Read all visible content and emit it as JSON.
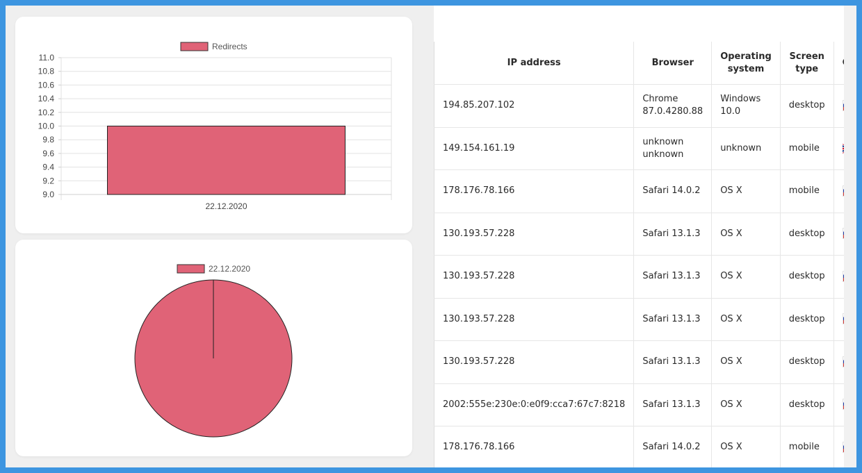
{
  "bar_chart": {
    "legend_label": "Redirects",
    "series_color": "#e06377",
    "y_ticks": [
      "11.0",
      "10.8",
      "10.6",
      "10.4",
      "10.2",
      "10.0",
      "9.8",
      "9.6",
      "9.4",
      "9.2",
      "9.0"
    ]
  },
  "pie_chart": {
    "legend_label": "22.12.2020",
    "slice_color": "#e06377"
  },
  "chart_data": [
    {
      "type": "bar",
      "categories": [
        "22.12.2020"
      ],
      "series": [
        {
          "name": "Redirects",
          "values": [
            10
          ]
        }
      ],
      "ylim": [
        9.0,
        11.0
      ],
      "grid": true,
      "legend": "top"
    },
    {
      "type": "pie",
      "labels": [
        "22.12.2020"
      ],
      "values": [
        10
      ],
      "legend": "top"
    }
  ],
  "table": {
    "headers": {
      "ip": "IP address",
      "browser": "Browser",
      "os_line1": "Operating",
      "os_line2": "system",
      "screen_line1": "Screen",
      "screen_line2": "type",
      "country": "Country"
    },
    "rows": [
      {
        "ip": "194.85.207.102",
        "browser_line1": "Chrome",
        "browser_line2": "87.0.4280.88",
        "os_line1": "Windows",
        "os_line2": "10.0",
        "screen": "desktop",
        "flag": "ru-flag-icon"
      },
      {
        "ip": "149.154.161.19",
        "browser_line1": "unknown",
        "browser_line2": "unknown",
        "os_line1": "unknown",
        "os_line2": "",
        "screen": "mobile",
        "flag": "uk-flag-icon"
      },
      {
        "ip": "178.176.78.166",
        "browser_line1": "Safari 14.0.2",
        "browser_line2": "",
        "os_line1": "OS X",
        "os_line2": "",
        "screen": "mobile",
        "flag": "ru-flag-icon"
      },
      {
        "ip": "130.193.57.228",
        "browser_line1": "Safari 13.1.3",
        "browser_line2": "",
        "os_line1": "OS X",
        "os_line2": "",
        "screen": "desktop",
        "flag": "ru-flag-icon"
      },
      {
        "ip": "130.193.57.228",
        "browser_line1": "Safari 13.1.3",
        "browser_line2": "",
        "os_line1": "OS X",
        "os_line2": "",
        "screen": "desktop",
        "flag": "ru-flag-icon"
      },
      {
        "ip": "130.193.57.228",
        "browser_line1": "Safari 13.1.3",
        "browser_line2": "",
        "os_line1": "OS X",
        "os_line2": "",
        "screen": "desktop",
        "flag": "ru-flag-icon"
      },
      {
        "ip": "130.193.57.228",
        "browser_line1": "Safari 13.1.3",
        "browser_line2": "",
        "os_line1": "OS X",
        "os_line2": "",
        "screen": "desktop",
        "flag": "ru-flag-icon"
      },
      {
        "ip": "2002:555e:230e:0:e0f9:cca7:67c7:8218",
        "browser_line1": "Safari 13.1.3",
        "browser_line2": "",
        "os_line1": "OS X",
        "os_line2": "",
        "screen": "desktop",
        "flag": "ru-flag-icon"
      },
      {
        "ip": "178.176.78.166",
        "browser_line1": "Safari 14.0.2",
        "browser_line2": "",
        "os_line1": "OS X",
        "os_line2": "",
        "screen": "mobile",
        "flag": "ru-flag-icon"
      }
    ]
  }
}
